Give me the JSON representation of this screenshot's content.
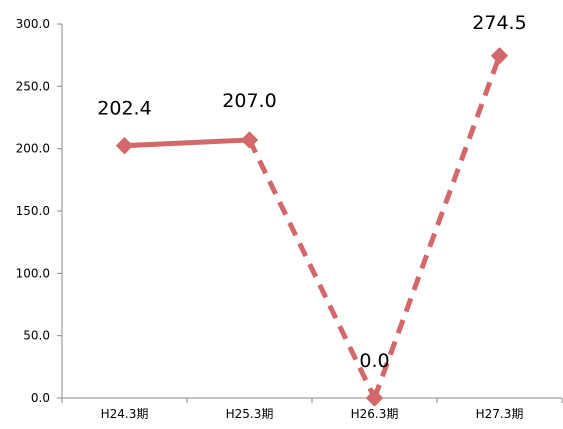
{
  "chart_data": {
    "type": "line",
    "categories": [
      "H24.3期",
      "H25.3期",
      "H26.3期",
      "H27.3期"
    ],
    "values": [
      202.4,
      207.0,
      0.0,
      274.5
    ],
    "data_labels": [
      "202.4",
      "207.0",
      "0.0",
      "274.5"
    ],
    "y_ticks": [
      "0.0",
      "50.0",
      "100.0",
      "150.0",
      "200.0",
      "250.0",
      "300.0"
    ],
    "ylim": [
      0,
      300
    ],
    "grid": false,
    "legend": "none",
    "title": "",
    "xlabel": "",
    "ylabel": "",
    "line_color": "#d36769",
    "segments": [
      {
        "from": 0,
        "to": 1,
        "style": "solid"
      },
      {
        "from": 1,
        "to": 2,
        "style": "dashed"
      },
      {
        "from": 2,
        "to": 3,
        "style": "dashed"
      }
    ]
  }
}
